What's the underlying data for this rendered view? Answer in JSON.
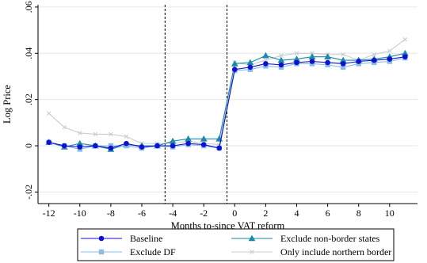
{
  "chart_data": {
    "type": "line",
    "title": "",
    "xlabel": "Months to-since VAT reform",
    "ylabel": "Log Price",
    "xlim": [
      -12.7,
      11.8
    ],
    "ylim": [
      -0.025,
      0.061
    ],
    "x_ticks": [
      -12,
      -10,
      -8,
      -6,
      -4,
      -2,
      0,
      2,
      4,
      6,
      8,
      10
    ],
    "x_tick_labels": [
      "-12",
      "-10",
      "-8",
      "-6",
      "-4",
      "-2",
      "0",
      "2",
      "4",
      "6",
      "8",
      "10"
    ],
    "y_ticks": [
      -0.02,
      0,
      0.02,
      0.04,
      0.06
    ],
    "y_tick_labels": [
      "-.02",
      "0",
      ".02",
      ".04",
      ".06"
    ],
    "reference_lines_x": [
      -4.5,
      -0.5
    ],
    "grid": "horizontal",
    "legend_position": "bottom",
    "series": [
      {
        "name": "Baseline",
        "color": "#1010d0",
        "marker": "circle",
        "x": [
          -12,
          -11,
          -10,
          -9,
          -8,
          -7,
          -6,
          -5,
          -4,
          -3,
          -2,
          -1,
          0,
          1,
          2,
          3,
          4,
          5,
          6,
          7,
          8,
          9,
          10,
          11
        ],
        "y": [
          0.0015,
          0.0,
          -0.0005,
          0.0,
          -0.001,
          0.001,
          -0.0005,
          0.0,
          0.0,
          0.001,
          0.0005,
          -0.001,
          0.033,
          0.034,
          0.0355,
          0.035,
          0.036,
          0.0365,
          0.036,
          0.0355,
          0.0365,
          0.037,
          0.0375,
          0.0385
        ]
      },
      {
        "name": "Exclude non-border states",
        "color": "#1a8aa8",
        "marker": "triangle",
        "x": [
          -12,
          -11,
          -10,
          -9,
          -8,
          -7,
          -6,
          -5,
          -4,
          -3,
          -2,
          -1,
          0,
          1,
          2,
          3,
          4,
          5,
          6,
          7,
          8,
          9,
          10,
          11
        ],
        "y": [
          0.0015,
          -0.0005,
          0.001,
          0.0,
          -0.0015,
          0.0005,
          0.0,
          0.0,
          0.002,
          0.003,
          0.003,
          0.003,
          0.0355,
          0.036,
          0.039,
          0.037,
          0.0375,
          0.0385,
          0.0385,
          0.037,
          0.037,
          0.0375,
          0.0385,
          0.04
        ]
      },
      {
        "name": "Exclude DF",
        "color": "#88bde8",
        "marker": "square",
        "x": [
          -12,
          -11,
          -10,
          -9,
          -8,
          -7,
          -6,
          -5,
          -4,
          -3,
          -2,
          -1,
          0,
          1,
          2,
          3,
          4,
          5,
          6,
          7,
          8,
          9,
          10,
          11
        ],
        "y": [
          0.0015,
          0.0,
          -0.0015,
          0.0,
          0.0,
          0.0,
          -0.001,
          0.0,
          -0.0005,
          0.0005,
          0.0,
          -0.001,
          0.0325,
          0.033,
          0.0345,
          0.034,
          0.0355,
          0.0355,
          0.035,
          0.034,
          0.0355,
          0.036,
          0.0365,
          0.038
        ]
      },
      {
        "name": "Only include northern border",
        "color": "#c8ccd8",
        "marker": "x",
        "x": [
          -12,
          -11,
          -10,
          -9,
          -8,
          -7,
          -6,
          -5,
          -4,
          -3,
          -2,
          -1,
          0,
          1,
          2,
          3,
          4,
          5,
          6,
          7,
          8,
          9,
          10,
          11
        ],
        "y": [
          0.014,
          0.008,
          0.0055,
          0.005,
          0.005,
          0.004,
          0.001,
          0.001,
          0.001,
          0.002,
          0.001,
          0.0005,
          0.036,
          0.035,
          0.037,
          0.039,
          0.04,
          0.04,
          0.0395,
          0.0395,
          0.037,
          0.0395,
          0.041,
          0.046
        ]
      }
    ]
  }
}
